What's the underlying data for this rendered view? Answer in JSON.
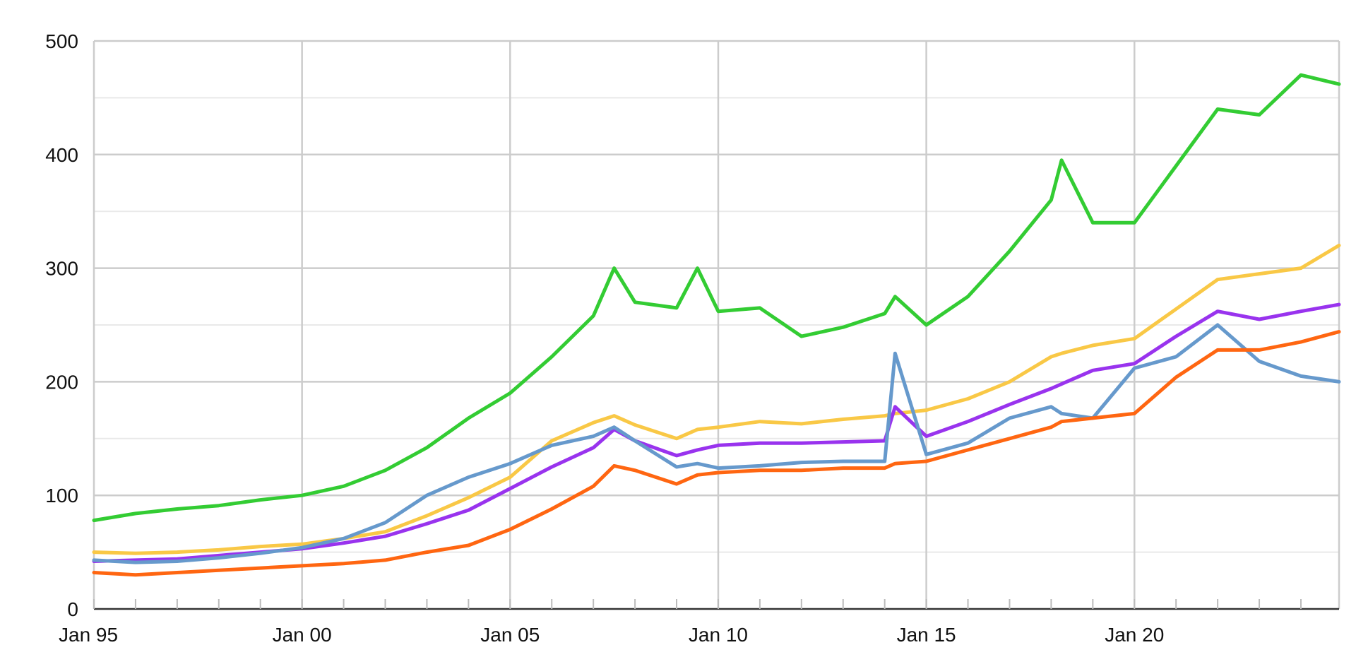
{
  "chart_data": {
    "type": "line",
    "title": "",
    "xlabel": "",
    "ylabel": "",
    "xlim": [
      "1995-01",
      "2024-12"
    ],
    "ylim": [
      0,
      500
    ],
    "grid": true,
    "legend": "none",
    "x_ticks": [
      "Jan 95",
      "Jan 00",
      "Jan 05",
      "Jan 10",
      "Jan 15",
      "Jan 20"
    ],
    "y_ticks": [
      "0",
      "100",
      "200",
      "300",
      "400",
      "500"
    ],
    "x": [
      "1995-01",
      "1996-01",
      "1997-01",
      "1998-01",
      "1999-01",
      "2000-01",
      "2001-01",
      "2002-01",
      "2003-01",
      "2004-01",
      "2005-01",
      "2006-01",
      "2007-01",
      "2007-07",
      "2008-01",
      "2009-01",
      "2009-07",
      "2010-01",
      "2011-01",
      "2012-01",
      "2013-01",
      "2014-01",
      "2014-04",
      "2015-01",
      "2016-01",
      "2017-01",
      "2018-01",
      "2018-04",
      "2019-01",
      "2020-01",
      "2021-01",
      "2022-01",
      "2023-01",
      "2024-01",
      "2024-12"
    ],
    "series": [
      {
        "color": "#33cc33",
        "values": [
          78,
          84,
          88,
          91,
          96,
          100,
          108,
          122,
          142,
          168,
          190,
          222,
          258,
          300,
          270,
          265,
          300,
          262,
          265,
          240,
          248,
          260,
          275,
          250,
          275,
          315,
          360,
          395,
          340,
          340,
          390,
          440,
          435,
          470,
          462
        ]
      },
      {
        "color": "#f9c846",
        "values": [
          50,
          49,
          50,
          52,
          55,
          57,
          62,
          68,
          82,
          98,
          116,
          148,
          164,
          170,
          162,
          150,
          158,
          160,
          165,
          163,
          167,
          170,
          172,
          175,
          185,
          200,
          222,
          225,
          232,
          238,
          264,
          290,
          295,
          300,
          320
        ]
      },
      {
        "color": "#9933ee",
        "values": [
          42,
          43,
          44,
          47,
          50,
          53,
          58,
          64,
          75,
          87,
          106,
          125,
          142,
          158,
          148,
          135,
          140,
          144,
          146,
          146,
          147,
          148,
          178,
          152,
          165,
          180,
          194,
          198,
          210,
          216,
          240,
          262,
          255,
          262,
          268
        ]
      },
      {
        "color": "#6699cc",
        "values": [
          43,
          41,
          42,
          45,
          49,
          54,
          62,
          76,
          100,
          116,
          128,
          144,
          152,
          160,
          148,
          125,
          128,
          124,
          126,
          129,
          130,
          130,
          225,
          136,
          146,
          168,
          178,
          172,
          168,
          212,
          222,
          250,
          218,
          205,
          200
        ]
      },
      {
        "color": "#ff6611",
        "values": [
          32,
          30,
          32,
          34,
          36,
          38,
          40,
          43,
          50,
          56,
          70,
          88,
          108,
          126,
          122,
          110,
          118,
          120,
          122,
          122,
          124,
          124,
          128,
          130,
          140,
          150,
          160,
          165,
          168,
          172,
          204,
          228,
          228,
          235,
          244
        ]
      }
    ]
  }
}
